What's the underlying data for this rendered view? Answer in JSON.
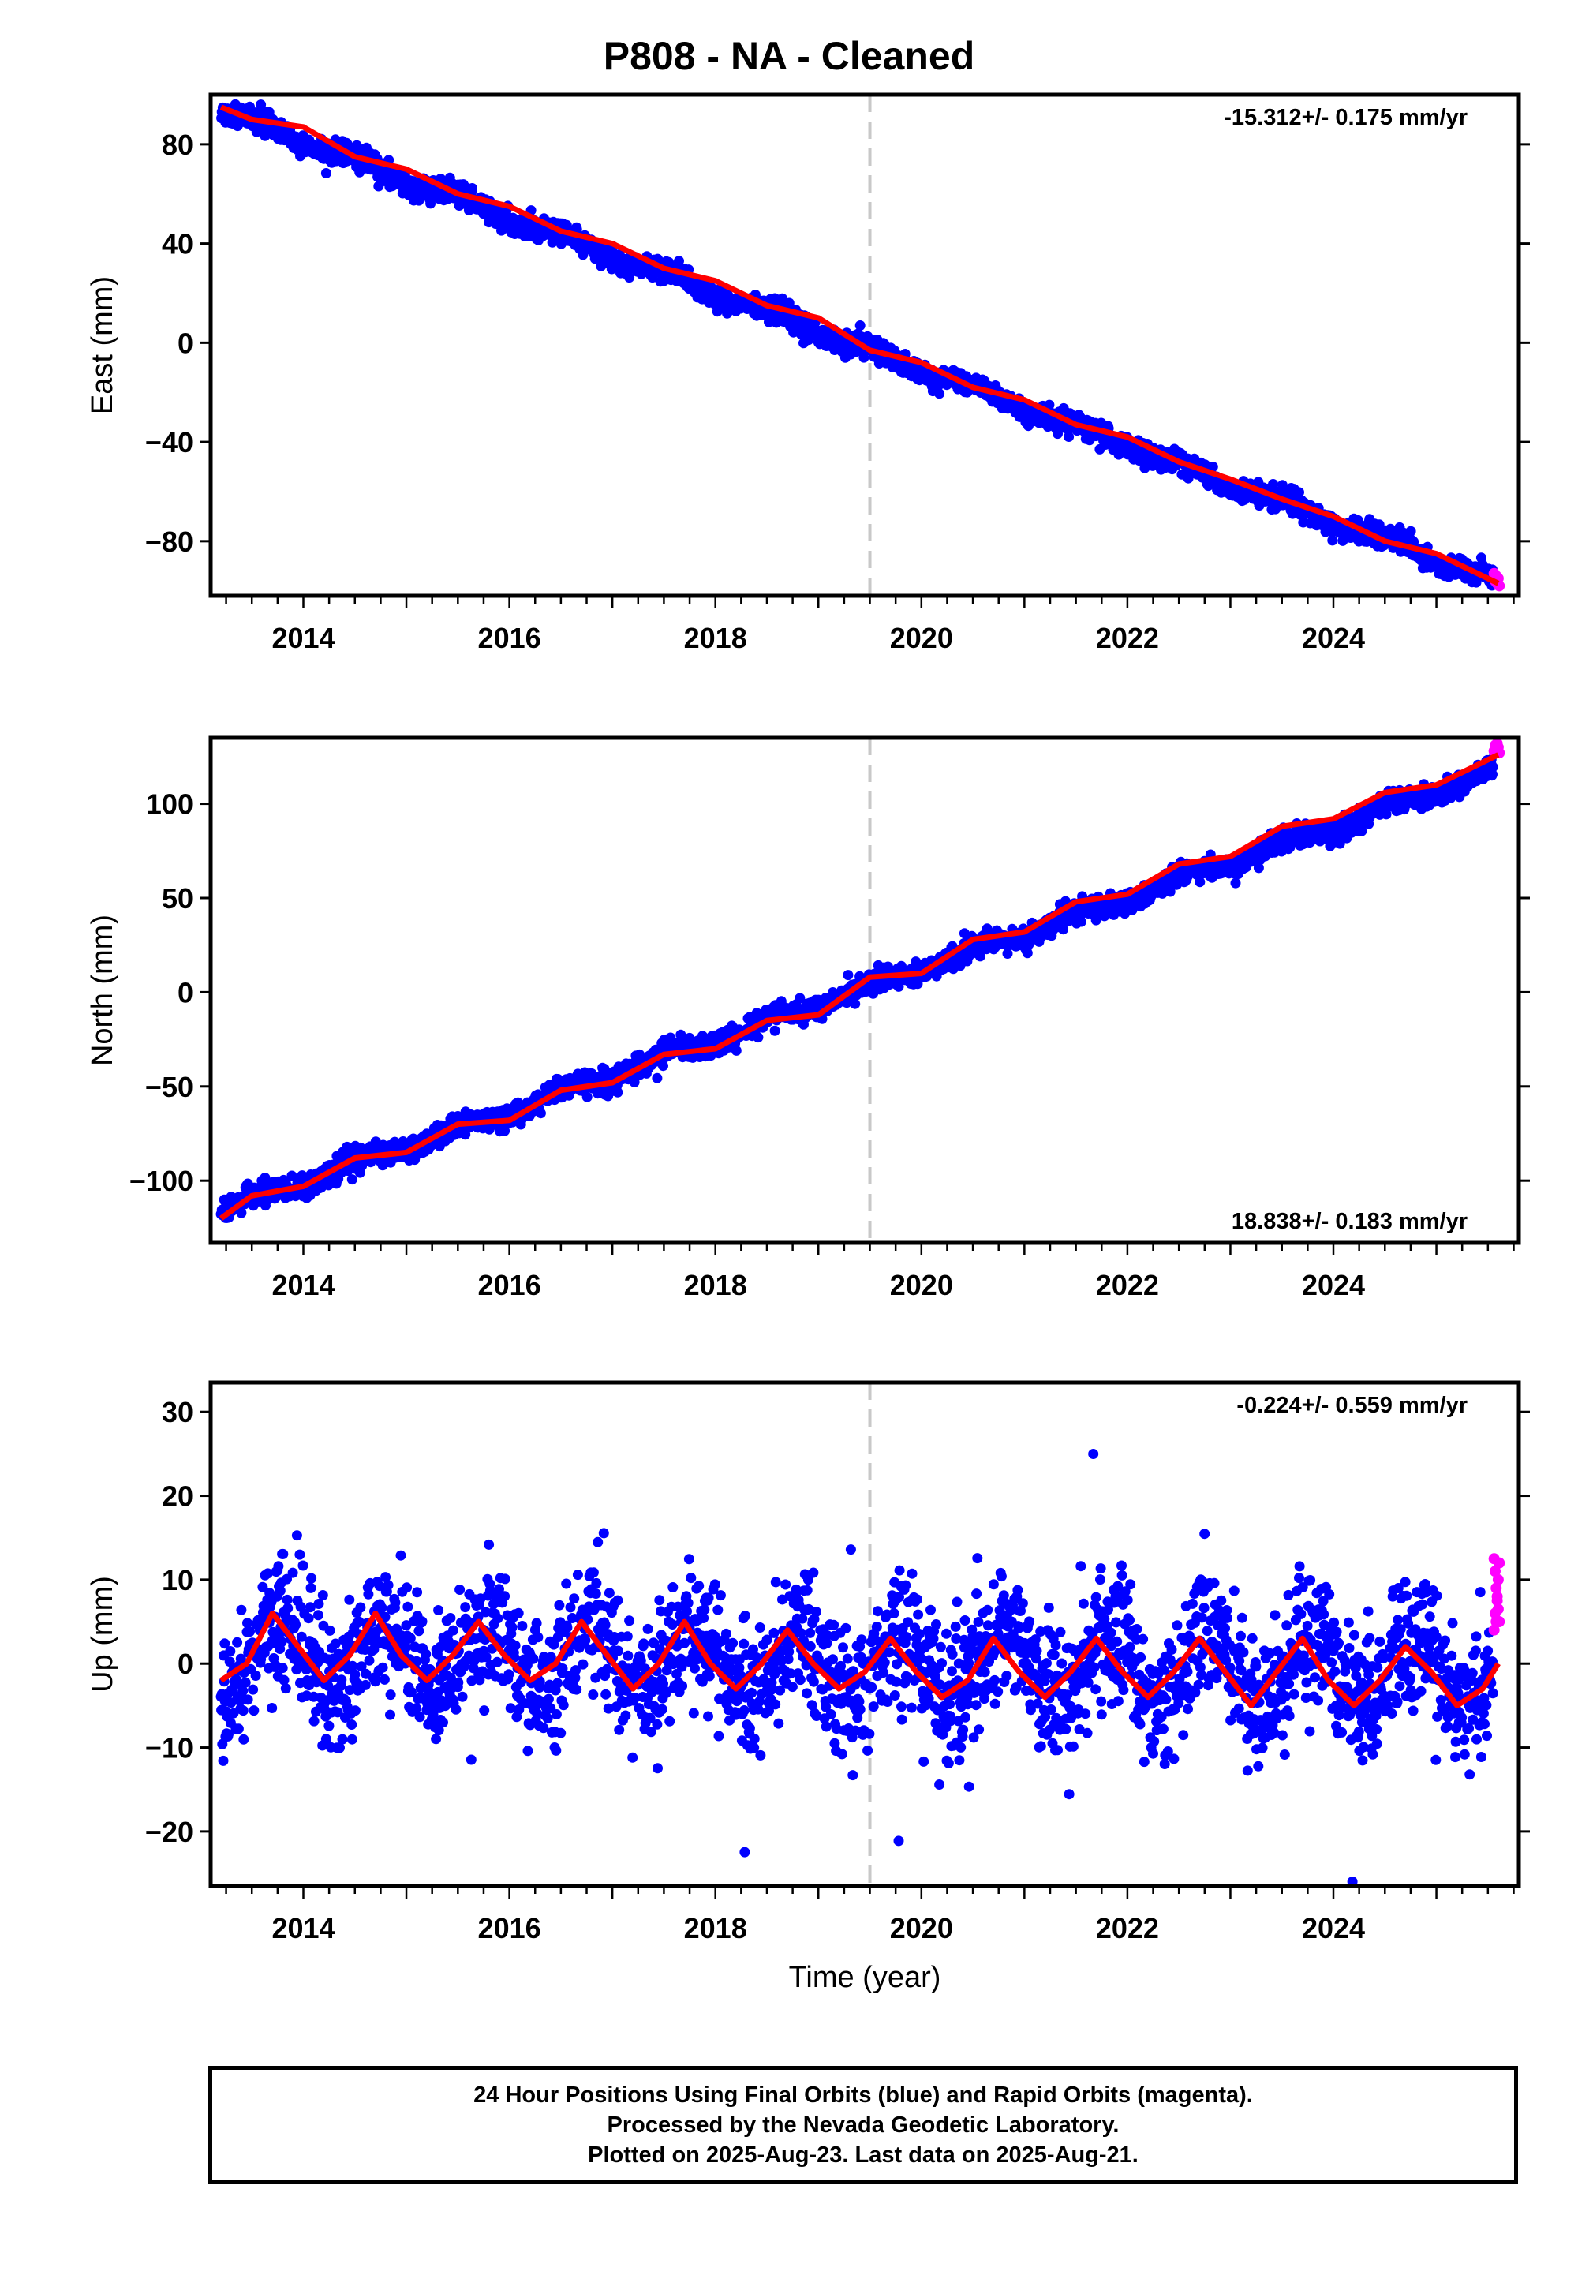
{
  "title": "P808  - NA - Cleaned",
  "colors": {
    "final_orbits": "#0000ff",
    "rapid_orbits": "#ff00ff",
    "model": "#ff0000",
    "event_line": "#c8c8c8"
  },
  "footer": {
    "line1": "24 Hour Positions Using Final Orbits (blue) and Rapid Orbits (magenta).",
    "line2": "Processed by the Nevada Geodetic Laboratory.",
    "line3": "Plotted on 2025-Aug-23. Last data on 2025-Aug-21."
  },
  "chart_data": [
    {
      "type": "scatter",
      "component": "East",
      "ylabel": "East (mm)",
      "xlabel": "",
      "rate_label": "-15.312+/- 0.175 mm/yr",
      "rate_label_position": "top-right",
      "xlim": [
        2013.1,
        2025.8
      ],
      "ylim": [
        -102,
        100
      ],
      "x_ticks": [
        2014,
        2016,
        2018,
        2020,
        2022,
        2024
      ],
      "y_ticks": [
        80,
        40,
        0,
        -40,
        -80
      ],
      "y_tick_labels": [
        "80",
        "40",
        "0",
        "−40",
        "−80"
      ],
      "event_line_x": 2019.5,
      "trend": {
        "slope": -15.312,
        "ref_year": 2019.5,
        "ref_value": -3,
        "seasonal_amplitude": 1.8,
        "scatter": 2.2
      },
      "model_curve": {
        "x": [
          2013.2,
          2013.5,
          2014.0,
          2014.5,
          2015.0,
          2015.5,
          2016.0,
          2016.5,
          2017.0,
          2017.5,
          2018.0,
          2018.5,
          2019.0,
          2019.5,
          2020.0,
          2020.5,
          2021.0,
          2021.5,
          2022.0,
          2022.5,
          2023.0,
          2023.5,
          2024.0,
          2024.5,
          2025.0,
          2025.6
        ],
        "y": [
          95,
          90,
          87,
          75,
          70,
          60,
          55,
          45,
          40,
          30,
          25,
          15,
          10,
          -3,
          -8,
          -18,
          -23,
          -33,
          -38,
          -48,
          -55,
          -63,
          -70,
          -80,
          -85,
          -97
        ]
      },
      "rapid_points": {
        "x": [
          2025.56,
          2025.57,
          2025.58,
          2025.59,
          2025.6,
          2025.61
        ],
        "y": [
          -93,
          -96,
          -94,
          -97,
          -95,
          -98
        ]
      }
    },
    {
      "type": "scatter",
      "component": "North",
      "ylabel": "North (mm)",
      "xlabel": "",
      "rate_label": "18.838+/- 0.183 mm/yr",
      "rate_label_position": "bottom-right",
      "xlim": [
        2013.1,
        2025.8
      ],
      "ylim": [
        -133,
        135
      ],
      "x_ticks": [
        2014,
        2016,
        2018,
        2020,
        2022,
        2024
      ],
      "y_ticks": [
        100,
        50,
        0,
        -50,
        -100
      ],
      "y_tick_labels": [
        "100",
        "50",
        "0",
        "−50",
        "−100"
      ],
      "event_line_x": 2019.5,
      "trend": {
        "slope": 18.838,
        "ref_year": 2019.5,
        "ref_value": 3,
        "seasonal_amplitude": 2.5,
        "scatter": 3.0
      },
      "model_curve": {
        "x": [
          2013.2,
          2013.5,
          2014.0,
          2014.5,
          2015.0,
          2015.5,
          2016.0,
          2016.5,
          2017.0,
          2017.5,
          2018.0,
          2018.5,
          2019.0,
          2019.5,
          2020.0,
          2020.5,
          2021.0,
          2021.5,
          2022.0,
          2022.5,
          2023.0,
          2023.5,
          2024.0,
          2024.5,
          2025.0,
          2025.6
        ],
        "y": [
          -120,
          -108,
          -103,
          -88,
          -85,
          -70,
          -68,
          -52,
          -48,
          -33,
          -30,
          -15,
          -12,
          8,
          10,
          28,
          32,
          48,
          52,
          68,
          72,
          88,
          92,
          106,
          110,
          126
        ]
      },
      "rapid_points": {
        "x": [
          2025.56,
          2025.57,
          2025.58,
          2025.59,
          2025.6,
          2025.61
        ],
        "y": [
          128,
          131,
          129,
          132,
          130,
          127
        ]
      }
    },
    {
      "type": "scatter",
      "component": "Up",
      "ylabel": "Up (mm)",
      "xlabel": "Time (year)",
      "rate_label": "-0.224+/- 0.559 mm/yr",
      "rate_label_position": "top-right",
      "xlim": [
        2013.1,
        2025.8
      ],
      "ylim": [
        -26.5,
        33.5
      ],
      "x_ticks": [
        2014,
        2016,
        2018,
        2020,
        2022,
        2024
      ],
      "y_ticks": [
        30,
        20,
        10,
        0,
        -10,
        -20
      ],
      "y_tick_labels": [
        "30",
        "20",
        "10",
        "0",
        "−10",
        "−20"
      ],
      "event_line_x": 2019.5,
      "trend": {
        "slope": -0.224,
        "ref_year": 2019.5,
        "ref_value": 0,
        "seasonal_amplitude": 4.0,
        "scatter": 4.0
      },
      "model_curve": {
        "x": [
          2013.2,
          2013.45,
          2013.7,
          2013.95,
          2014.2,
          2014.45,
          2014.7,
          2014.95,
          2015.2,
          2015.45,
          2015.7,
          2015.95,
          2016.2,
          2016.45,
          2016.7,
          2016.95,
          2017.2,
          2017.45,
          2017.7,
          2017.95,
          2018.2,
          2018.45,
          2018.7,
          2018.95,
          2019.2,
          2019.45,
          2019.7,
          2019.95,
          2020.2,
          2020.45,
          2020.7,
          2020.95,
          2021.2,
          2021.45,
          2021.7,
          2021.95,
          2022.2,
          2022.45,
          2022.7,
          2022.95,
          2023.2,
          2023.45,
          2023.7,
          2023.95,
          2024.2,
          2024.45,
          2024.7,
          2024.95,
          2025.2,
          2025.45,
          2025.6
        ],
        "y": [
          -2,
          0,
          6,
          2,
          -2,
          1,
          6,
          1,
          -2,
          1,
          5,
          1,
          -2,
          0,
          5,
          1,
          -3,
          0,
          5,
          0,
          -3,
          0,
          4,
          0,
          -3,
          -1,
          3,
          -1,
          -4,
          -2,
          3,
          -1,
          -4,
          -1,
          3,
          -1,
          -4,
          -1,
          3,
          -1,
          -5,
          -1,
          3,
          -2,
          -5,
          -2,
          2,
          -1,
          -5,
          -3,
          0
        ]
      },
      "rapid_points": {
        "x": [
          2025.56,
          2025.56,
          2025.57,
          2025.57,
          2025.58,
          2025.58,
          2025.59,
          2025.59,
          2025.6,
          2025.6,
          2025.61,
          2025.61
        ],
        "y": [
          12.5,
          4,
          11,
          6,
          9,
          5,
          7.5,
          8,
          6.5,
          10,
          5,
          12
        ]
      }
    }
  ]
}
